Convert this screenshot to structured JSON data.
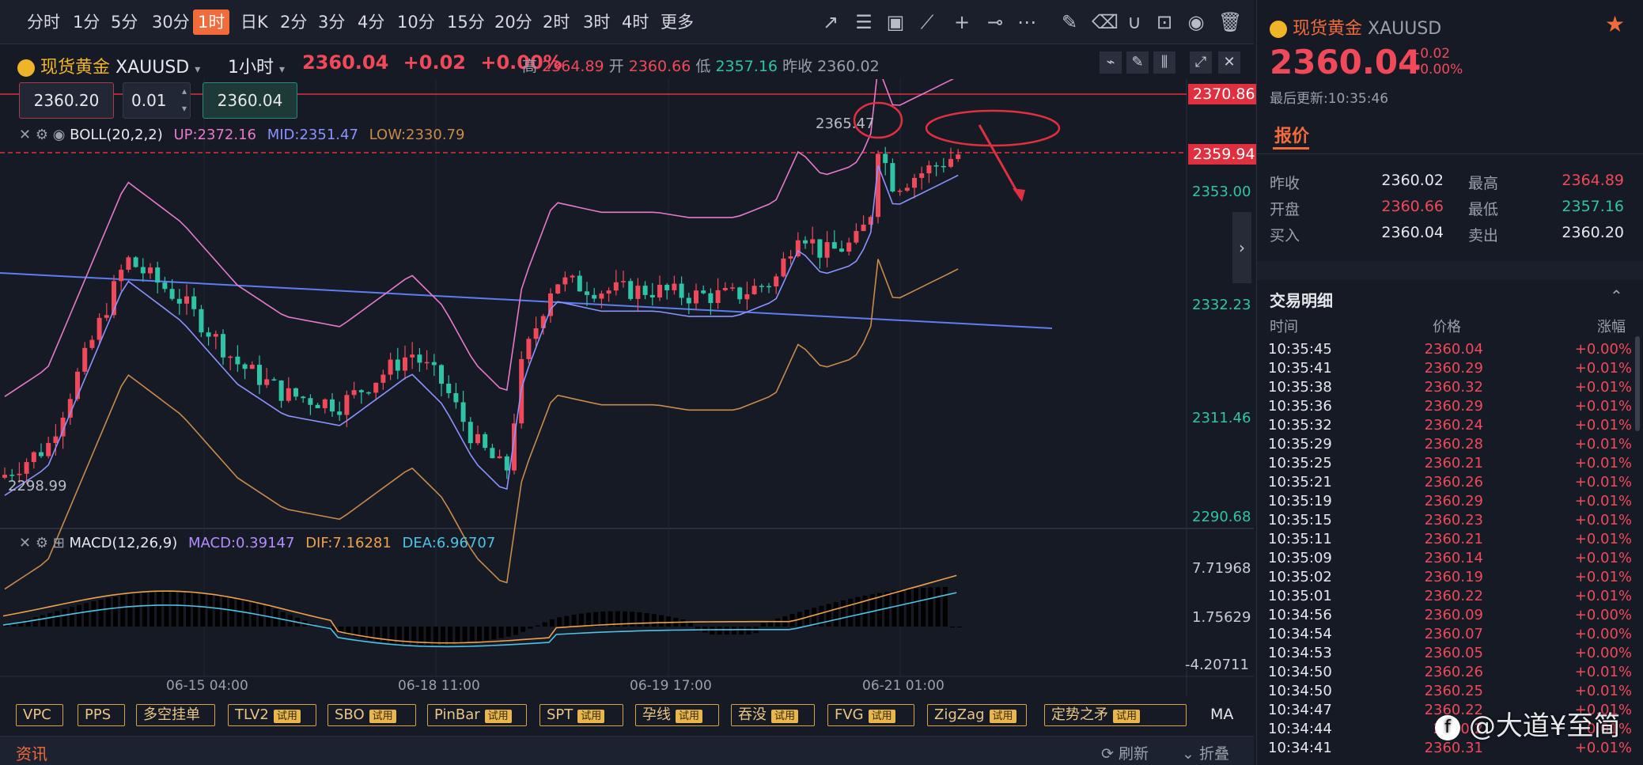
{
  "timeframes": [
    "分时",
    "1分",
    "5分",
    "30分",
    "1时",
    "日K",
    "2分",
    "3分",
    "4分",
    "10分",
    "15分",
    "20分",
    "2时",
    "3时",
    "4时",
    "更多"
  ],
  "active_timeframe": "1时",
  "symbol": {
    "name": "现货黄金",
    "code": "XAUUSD",
    "interval": "1小时",
    "price": "2360.04",
    "change": "+0.02",
    "change_pct": "+0.00%",
    "high_label": "高",
    "high": "2364.89",
    "open_label": "开",
    "open": "2360.66",
    "low_label": "低",
    "low": "2357.16",
    "prev_label": "昨收",
    "prev": "2360.02"
  },
  "order": {
    "sell_price": "2360.20",
    "qty": "0.01",
    "buy_price": "2360.04"
  },
  "boll": {
    "label": "BOLL(20,2,2)",
    "up": "UP:2372.16",
    "mid": "MID:2351.47",
    "low": "LOW:2330.79"
  },
  "macd": {
    "label": "MACD(12,26,9)",
    "macd": "MACD:0.39147",
    "dif": "DIF:7.16281",
    "dea": "DEA:6.96707"
  },
  "price_axis": [
    "2353.00",
    "2332.23",
    "2311.46",
    "2290.68"
  ],
  "macd_axis": [
    "7.71968",
    "1.75629",
    "-4.20711"
  ],
  "tags": {
    "top": "2370.86",
    "current": "2359.94",
    "peak_label": "2365.47",
    "low_label": "2298.99"
  },
  "time_axis": [
    "06-15 04:00",
    "06-18 11:00",
    "06-19 17:00",
    "06-21 01:00"
  ],
  "indicators": [
    {
      "label": "VPC",
      "trial": ""
    },
    {
      "label": "PPS",
      "trial": ""
    },
    {
      "label": "多空挂单",
      "trial": ""
    },
    {
      "label": "TLV2",
      "trial": "试用"
    },
    {
      "label": "SBO",
      "trial": "试用"
    },
    {
      "label": "PinBar",
      "trial": "试用"
    },
    {
      "label": "SPT",
      "trial": "试用"
    },
    {
      "label": "孕线",
      "trial": "试用"
    },
    {
      "label": "吞没",
      "trial": "试用"
    },
    {
      "label": "FVG",
      "trial": "试用"
    },
    {
      "label": "ZigZag",
      "trial": "试用"
    },
    {
      "label": "定势之矛",
      "trial": "试用"
    }
  ],
  "ma_label": "MA",
  "news": {
    "title": "资讯",
    "refresh": "刷新",
    "collapse": "折叠"
  },
  "panel": {
    "name": "现货黄金",
    "code": "XAUUSD",
    "price": "2360.04",
    "change": "+0.02",
    "change_pct": "+0.00%",
    "updated": "最后更新:10:35:46",
    "quote_tab": "报价",
    "quote": {
      "prev_label": "昨收",
      "prev": "2360.02",
      "high_label": "最高",
      "high": "2364.89",
      "open_label": "开盘",
      "open": "2360.66",
      "low_label": "最低",
      "low": "2357.16",
      "bid_label": "买入",
      "bid": "2360.04",
      "ask_label": "卖出",
      "ask": "2360.20"
    },
    "trades_title": "交易明细",
    "cols": [
      "时间",
      "价格",
      "涨幅"
    ],
    "trades": [
      [
        "10:35:45",
        "2360.04",
        "+0.00%"
      ],
      [
        "10:35:41",
        "2360.29",
        "+0.01%"
      ],
      [
        "10:35:38",
        "2360.32",
        "+0.01%"
      ],
      [
        "10:35:36",
        "2360.29",
        "+0.01%"
      ],
      [
        "10:35:32",
        "2360.24",
        "+0.01%"
      ],
      [
        "10:35:29",
        "2360.28",
        "+0.01%"
      ],
      [
        "10:35:25",
        "2360.21",
        "+0.01%"
      ],
      [
        "10:35:21",
        "2360.26",
        "+0.01%"
      ],
      [
        "10:35:19",
        "2360.29",
        "+0.01%"
      ],
      [
        "10:35:15",
        "2360.23",
        "+0.01%"
      ],
      [
        "10:35:11",
        "2360.21",
        "+0.01%"
      ],
      [
        "10:35:09",
        "2360.14",
        "+0.01%"
      ],
      [
        "10:35:02",
        "2360.19",
        "+0.01%"
      ],
      [
        "10:35:01",
        "2360.22",
        "+0.01%"
      ],
      [
        "10:34:56",
        "2360.09",
        "+0.00%"
      ],
      [
        "10:34:54",
        "2360.07",
        "+0.00%"
      ],
      [
        "10:34:53",
        "2360.05",
        "+0.00%"
      ],
      [
        "10:34:50",
        "2360.26",
        "+0.01%"
      ],
      [
        "10:34:50",
        "2360.25",
        "+0.01%"
      ],
      [
        "10:34:47",
        "2360.22",
        "+0.01%"
      ],
      [
        "10:34:44",
        "2360.2",
        "+0.01%"
      ],
      [
        "10:34:41",
        "2360.31",
        "+0.01%"
      ]
    ]
  },
  "watermark": "@大道¥至简",
  "colors": {
    "up": "#f0495a",
    "down": "#2fc4a6",
    "accent": "#f26b3a"
  }
}
